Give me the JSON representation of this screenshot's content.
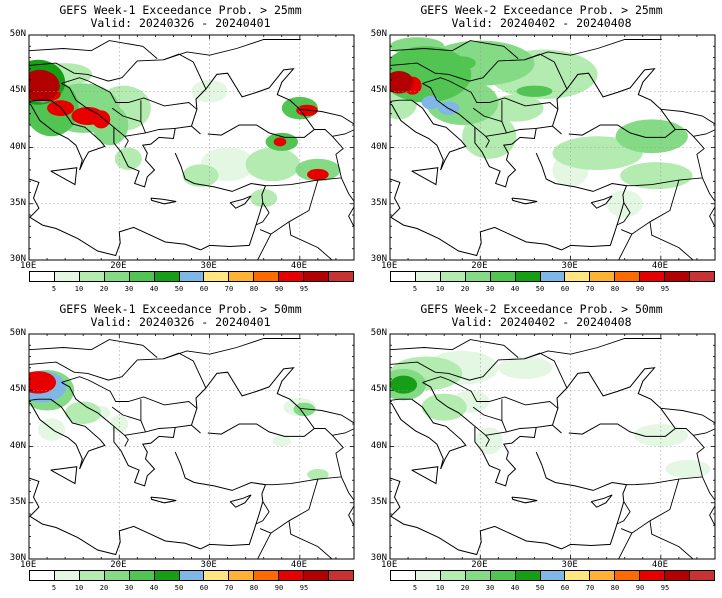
{
  "panels": [
    {
      "title": "GEFS Week-1 Exceedance Prob. > 25mm",
      "valid": "Valid: 20240326 - 20240401"
    },
    {
      "title": "GEFS Week-2 Exceedance Prob. > 25mm",
      "valid": "Valid: 20240402 - 20240408"
    },
    {
      "title": "GEFS Week-1 Exceedance Prob. > 50mm",
      "valid": "Valid: 20240326 - 20240401"
    },
    {
      "title": "GEFS Week-2 Exceedance Prob. > 50mm",
      "valid": "Valid: 20240402 - 20240408"
    }
  ],
  "lat_labels": [
    "50N",
    "45N",
    "40N",
    "35N",
    "30N"
  ],
  "lon_labels": [
    "10E",
    "20E",
    "30E",
    "40E"
  ],
  "colorbar": {
    "ticks": [
      "5",
      "10",
      "20",
      "30",
      "40",
      "50",
      "60",
      "70",
      "80",
      "90",
      "95"
    ],
    "colors": [
      "#ffffff",
      "#e3f7e3",
      "#b3ebb0",
      "#85db85",
      "#52c452",
      "#179e17",
      "#7fb8e6",
      "#ffe680",
      "#ffb233",
      "#ff6a00",
      "#e60000",
      "#b30000",
      "#c83232"
    ]
  }
}
